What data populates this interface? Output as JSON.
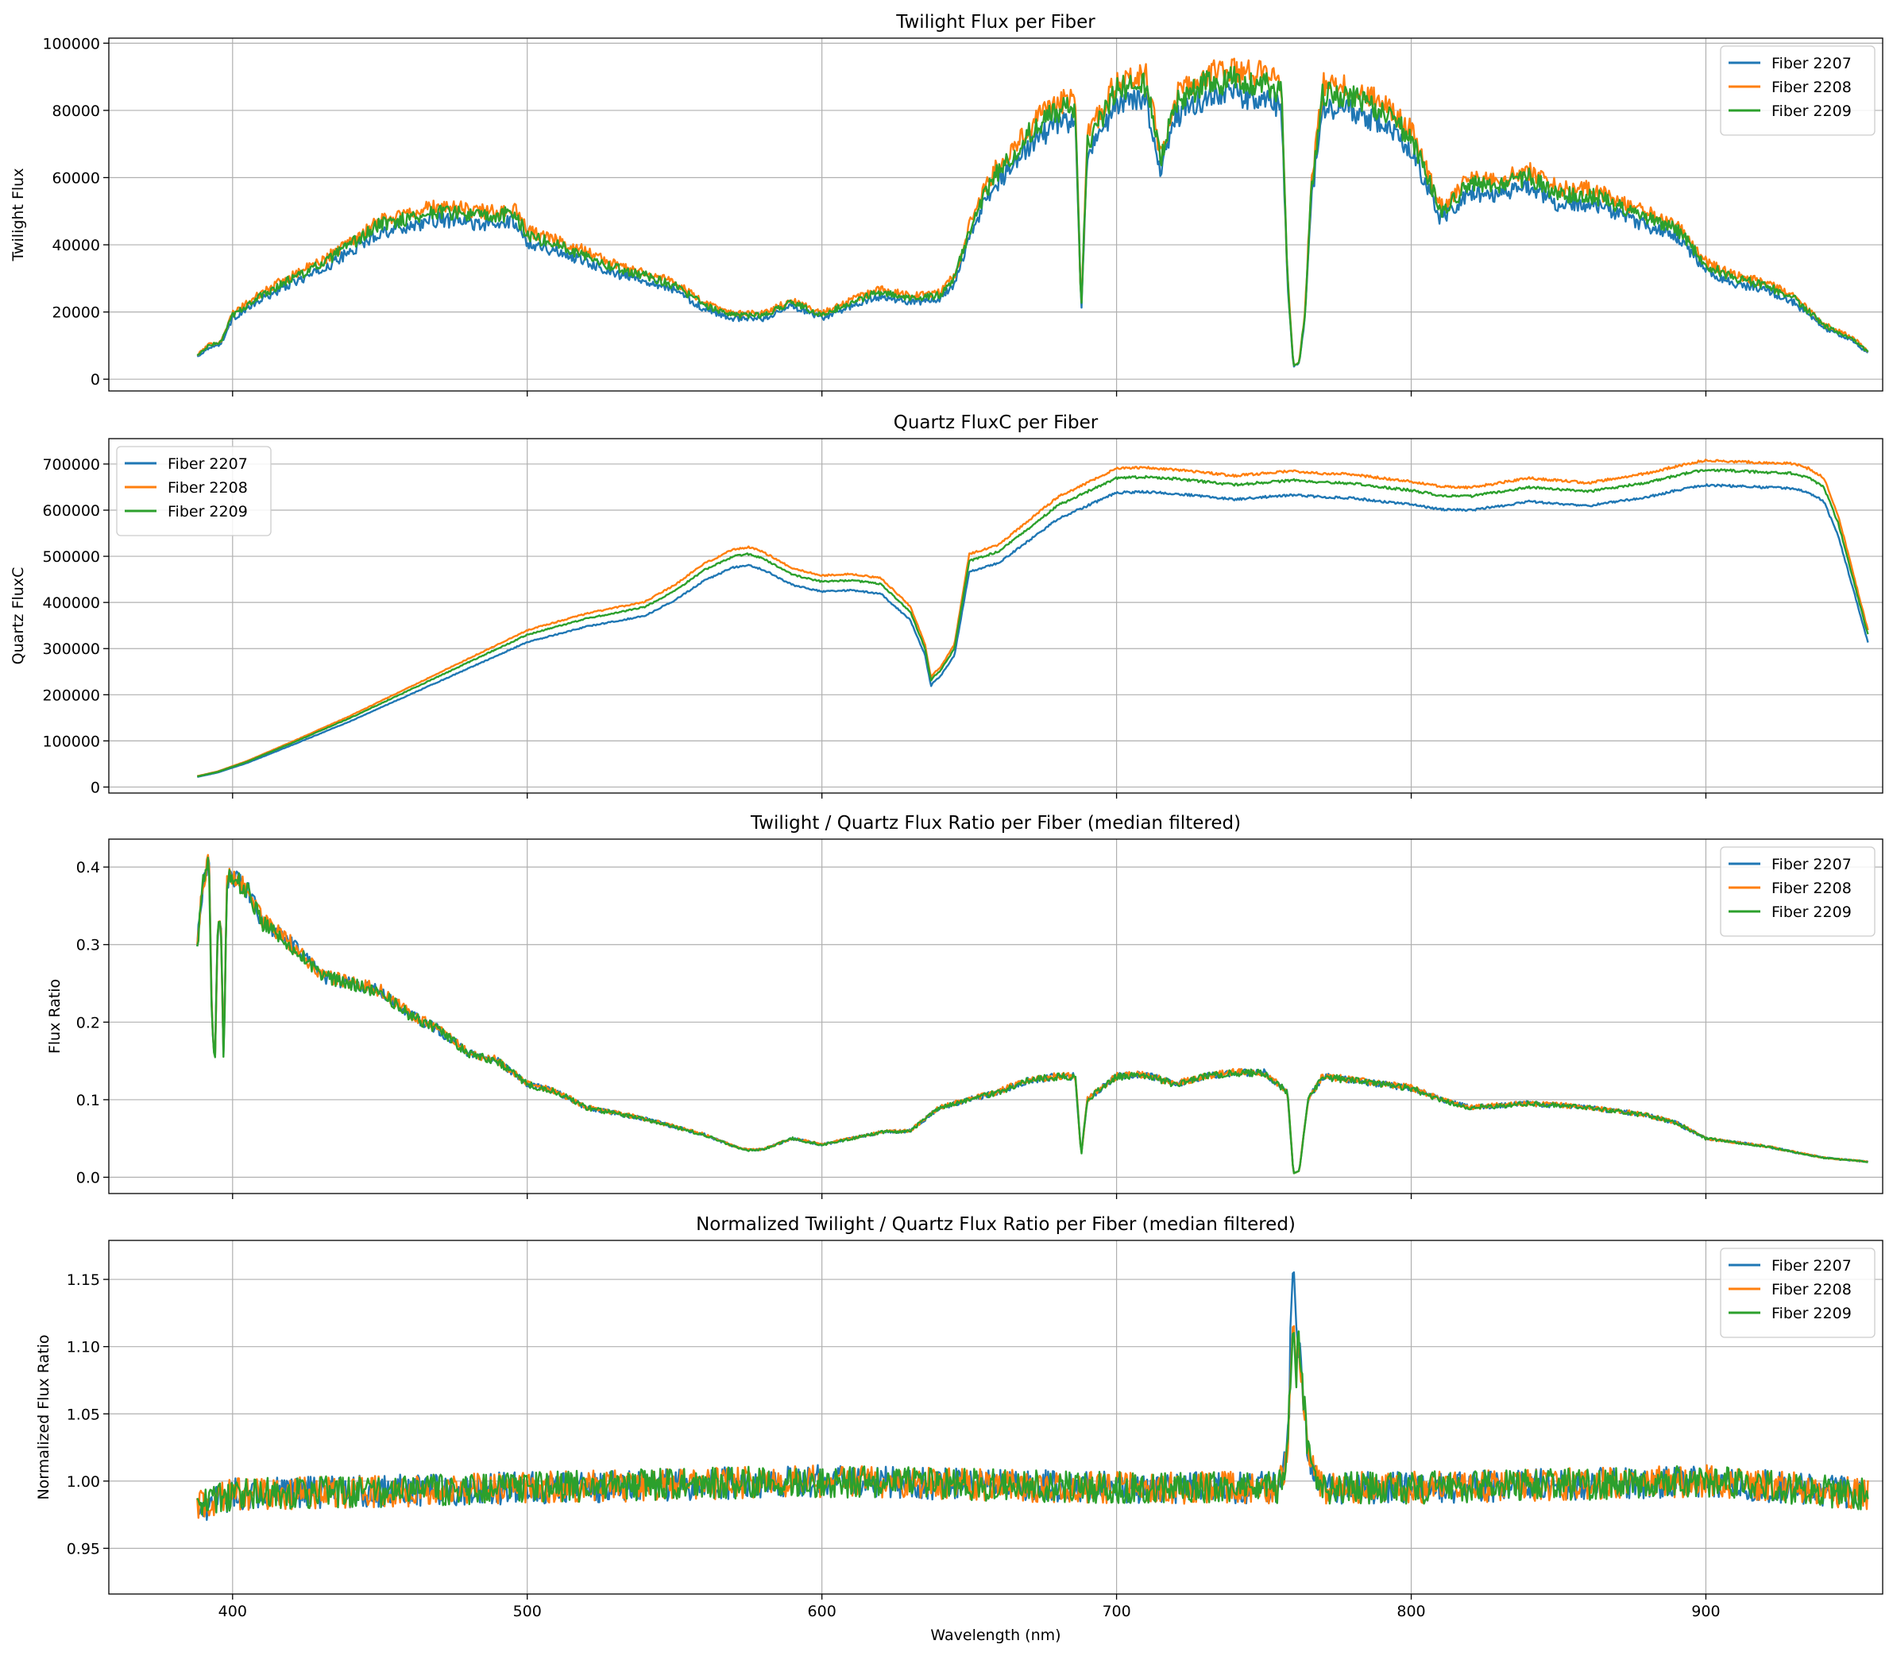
{
  "figure": {
    "xlabel": "Wavelength (nm)"
  },
  "colors": {
    "s0": "#1f77b4",
    "s1": "#ff7f0e",
    "s2": "#2ca02c",
    "grid": "#b0b0b0"
  },
  "chart_data": [
    {
      "type": "line",
      "title": "Twilight Flux per Fiber",
      "xlabel": "",
      "ylabel": "Twilight Flux",
      "xlim": [
        358,
        960
      ],
      "ylim": [
        -3500,
        101500
      ],
      "xticks": [
        400,
        500,
        600,
        700,
        800,
        900
      ],
      "yticks": [
        0,
        20000,
        40000,
        60000,
        80000,
        100000
      ],
      "ytick_labels": [
        "0",
        "20000",
        "40000",
        "60000",
        "80000",
        "100000"
      ],
      "grid": true,
      "legend_position": "upper-right",
      "noise": 0.045,
      "series": [
        {
          "name": "Fiber 2207",
          "scale": 0.95
        },
        {
          "name": "Fiber 2208",
          "scale": 1.03
        },
        {
          "name": "Fiber 2209",
          "scale": 1.0
        }
      ],
      "x": [
        388,
        392,
        396,
        400,
        410,
        420,
        430,
        440,
        450,
        460,
        470,
        480,
        490,
        495,
        500,
        510,
        520,
        530,
        540,
        550,
        560,
        570,
        580,
        590,
        600,
        610,
        620,
        630,
        640,
        645,
        650,
        655,
        660,
        665,
        670,
        680,
        686,
        688,
        690,
        700,
        710,
        715,
        720,
        730,
        740,
        750,
        756,
        758,
        760,
        762,
        764,
        766,
        770,
        780,
        790,
        800,
        810,
        820,
        830,
        840,
        850,
        860,
        870,
        880,
        890,
        900,
        905,
        910,
        920,
        930,
        940,
        950,
        955
      ],
      "values": [
        7000,
        10000,
        11000,
        19000,
        25000,
        30000,
        34000,
        40000,
        46000,
        48000,
        50000,
        49000,
        48000,
        50000,
        43000,
        40000,
        37000,
        33000,
        31000,
        28000,
        22000,
        19000,
        19000,
        23000,
        19000,
        23000,
        26000,
        24000,
        25000,
        30000,
        44000,
        55000,
        62000,
        67000,
        73000,
        80000,
        81000,
        20000,
        70000,
        86000,
        88000,
        65000,
        82000,
        88000,
        89000,
        88000,
        85000,
        30000,
        4000,
        5000,
        20000,
        55000,
        85000,
        84000,
        80000,
        72000,
        50000,
        58000,
        58000,
        60000,
        55000,
        55000,
        52000,
        48000,
        45000,
        34000,
        32000,
        30000,
        28000,
        24000,
        16000,
        12000,
        8000
      ]
    },
    {
      "type": "line",
      "title": "Quartz FluxC per Fiber",
      "xlabel": "",
      "ylabel": "Quartz FluxC",
      "xlim": [
        358,
        960
      ],
      "ylim": [
        -13000,
        755000
      ],
      "xticks": [
        400,
        500,
        600,
        700,
        800,
        900
      ],
      "yticks": [
        0,
        100000,
        200000,
        300000,
        400000,
        500000,
        600000,
        700000
      ],
      "ytick_labels": [
        "0",
        "100000",
        "200000",
        "300000",
        "400000",
        "500000",
        "600000",
        "700000"
      ],
      "grid": true,
      "legend_position": "upper-left",
      "noise": 0.004,
      "series": [
        {
          "name": "Fiber 2207",
          "scale": 0.952
        },
        {
          "name": "Fiber 2208",
          "scale": 1.03
        },
        {
          "name": "Fiber 2209",
          "scale": 1.0
        }
      ],
      "x": [
        388,
        395,
        405,
        420,
        440,
        460,
        480,
        500,
        520,
        540,
        550,
        560,
        570,
        575,
        580,
        590,
        600,
        610,
        620,
        630,
        635,
        637,
        638,
        640,
        645,
        650,
        660,
        670,
        680,
        690,
        700,
        710,
        720,
        740,
        750,
        760,
        770,
        780,
        790,
        800,
        810,
        820,
        840,
        860,
        880,
        890,
        900,
        910,
        920,
        930,
        935,
        940,
        945,
        950,
        955
      ],
      "values": [
        23000,
        33000,
        55000,
        95000,
        150000,
        210000,
        270000,
        330000,
        365000,
        390000,
        425000,
        470000,
        500000,
        505000,
        495000,
        460000,
        445000,
        448000,
        440000,
        380000,
        300000,
        230000,
        240000,
        250000,
        300000,
        490000,
        510000,
        560000,
        610000,
        640000,
        670000,
        672000,
        668000,
        655000,
        660000,
        665000,
        660000,
        658000,
        650000,
        643000,
        632000,
        630000,
        650000,
        640000,
        660000,
        675000,
        688000,
        685000,
        682000,
        680000,
        670000,
        650000,
        570000,
        450000,
        330000
      ]
    },
    {
      "type": "line",
      "title": "Twilight / Quartz Flux Ratio per Fiber (median filtered)",
      "xlabel": "",
      "ylabel": "Flux Ratio",
      "xlim": [
        358,
        960
      ],
      "ylim": [
        -0.021,
        0.436
      ],
      "xticks": [
        400,
        500,
        600,
        700,
        800,
        900
      ],
      "yticks": [
        0.0,
        0.1,
        0.2,
        0.3,
        0.4
      ],
      "ytick_labels": [
        "0.0",
        "0.1",
        "0.2",
        "0.3",
        "0.4"
      ],
      "grid": true,
      "legend_position": "upper-right",
      "noise": 0.035,
      "series": [
        {
          "name": "Fiber 2207",
          "scale": 1.0
        },
        {
          "name": "Fiber 2208",
          "scale": 1.005
        },
        {
          "name": "Fiber 2209",
          "scale": 0.998
        }
      ],
      "x": [
        388,
        390,
        391,
        392,
        393,
        394,
        395,
        396,
        397,
        398,
        400,
        405,
        410,
        420,
        430,
        440,
        450,
        460,
        470,
        480,
        490,
        500,
        510,
        520,
        540,
        560,
        570,
        575,
        580,
        590,
        600,
        610,
        620,
        630,
        640,
        650,
        660,
        670,
        680,
        686,
        688,
        690,
        700,
        710,
        720,
        730,
        740,
        750,
        758,
        760,
        762,
        765,
        770,
        780,
        790,
        800,
        810,
        820,
        840,
        860,
        880,
        890,
        900,
        920,
        940,
        955
      ],
      "values": [
        0.3,
        0.38,
        0.39,
        0.41,
        0.2,
        0.14,
        0.33,
        0.34,
        0.14,
        0.38,
        0.39,
        0.37,
        0.33,
        0.3,
        0.26,
        0.25,
        0.24,
        0.21,
        0.19,
        0.16,
        0.15,
        0.12,
        0.11,
        0.09,
        0.075,
        0.055,
        0.04,
        0.035,
        0.036,
        0.05,
        0.042,
        0.05,
        0.058,
        0.06,
        0.09,
        0.1,
        0.11,
        0.125,
        0.13,
        0.13,
        0.028,
        0.1,
        0.13,
        0.132,
        0.12,
        0.13,
        0.135,
        0.135,
        0.11,
        0.005,
        0.008,
        0.1,
        0.13,
        0.125,
        0.12,
        0.115,
        0.1,
        0.09,
        0.095,
        0.09,
        0.08,
        0.07,
        0.05,
        0.04,
        0.025,
        0.02
      ]
    },
    {
      "type": "line",
      "title": "Normalized Twilight / Quartz Flux Ratio per Fiber (median filtered)",
      "xlabel": "Wavelength (nm)",
      "ylabel": "Normalized Flux Ratio",
      "xlim": [
        358,
        960
      ],
      "ylim": [
        0.916,
        1.179
      ],
      "xticks": [
        400,
        500,
        600,
        700,
        800,
        900
      ],
      "xtick_labels": [
        "400",
        "500",
        "600",
        "700",
        "800",
        "900"
      ],
      "yticks": [
        0.95,
        1.0,
        1.05,
        1.1,
        1.15
      ],
      "ytick_labels": [
        "0.95",
        "1.00",
        "1.05",
        "1.10",
        "1.15"
      ],
      "grid": true,
      "legend_position": "upper-right",
      "noise_abs": 0.012,
      "series": [
        {
          "name": "Fiber 2207",
          "scale": 1.0,
          "peak": 1.165
        },
        {
          "name": "Fiber 2208",
          "scale": 1.0,
          "peak": 1.125
        },
        {
          "name": "Fiber 2209",
          "scale": 1.0,
          "peak": 1.12
        }
      ],
      "x": [
        388,
        400,
        500,
        600,
        700,
        755,
        758,
        760,
        762,
        765,
        770,
        800,
        900,
        955
      ],
      "values": [
        0.98,
        0.99,
        0.995,
        1.0,
        0.995,
        0.995,
        1.02,
        1.14,
        1.1,
        1.02,
        0.995,
        0.995,
        1.0,
        0.99
      ]
    }
  ]
}
